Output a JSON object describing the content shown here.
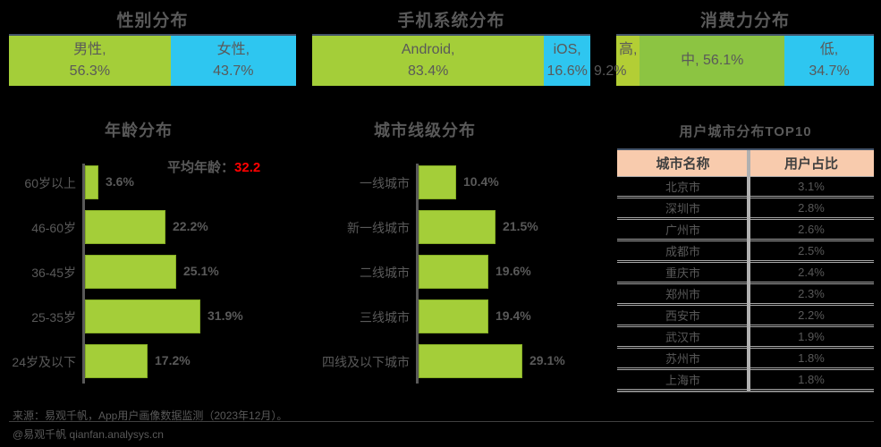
{
  "colors": {
    "green": "#A4CE39",
    "green_high": "#B3CE35",
    "green_mid": "#8CC442",
    "cyan": "#2EC6F0",
    "text_gray": "#595959",
    "red": "#FF0000",
    "table_header_bg": "#F8CBAD",
    "table_border": "#A6A6A6",
    "accent_line": "#44546A"
  },
  "top_charts": [
    {
      "title": "性别分布",
      "segments": [
        {
          "name": "男性,",
          "value": "56.3%",
          "pct": 56.3,
          "color": "green"
        },
        {
          "name": "女性,",
          "value": "43.7%",
          "pct": 43.7,
          "color": "cyan"
        }
      ]
    },
    {
      "title": "手机系统分布",
      "segments": [
        {
          "name": "Android,",
          "value": "83.4%",
          "pct": 83.4,
          "color": "green"
        },
        {
          "name": "iOS,",
          "value": "16.6%",
          "pct": 16.6,
          "color": "cyan"
        }
      ]
    },
    {
      "title": "消费力分布",
      "segments": [
        {
          "name": "高,",
          "value": "9.2%",
          "pct": 9.2,
          "color": "green_high",
          "value_overflow": true
        },
        {
          "name": "中, 56.1%",
          "value": "",
          "pct": 56.1,
          "color": "green_mid",
          "inline": true
        },
        {
          "name": "低,",
          "value": "34.7%",
          "pct": 34.7,
          "color": "cyan"
        }
      ]
    }
  ],
  "age_chart": {
    "title": "年龄分布",
    "annotation_label": "平均年龄：",
    "annotation_value": "32.2",
    "bars": [
      {
        "label": "60岁以上",
        "value": "3.6%",
        "pct": 3.6
      },
      {
        "label": "46-60岁",
        "value": "22.2%",
        "pct": 22.2
      },
      {
        "label": "36-45岁",
        "value": "25.1%",
        "pct": 25.1
      },
      {
        "label": "25-35岁",
        "value": "31.9%",
        "pct": 31.9
      },
      {
        "label": "24岁及以下",
        "value": "17.2%",
        "pct": 17.2
      }
    ]
  },
  "city_chart": {
    "title": "城市线级分布",
    "bars": [
      {
        "label": "一线城市",
        "value": "10.4%",
        "pct": 10.4
      },
      {
        "label": "新一线城市",
        "value": "21.5%",
        "pct": 21.5
      },
      {
        "label": "二线城市",
        "value": "19.6%",
        "pct": 19.6
      },
      {
        "label": "三线城市",
        "value": "19.4%",
        "pct": 19.4
      },
      {
        "label": "四线及以下城市",
        "value": "29.1%",
        "pct": 29.1
      }
    ]
  },
  "city_table": {
    "title": "用户城市分布TOP10",
    "columns": [
      "城市名称",
      "用户占比"
    ],
    "rows": [
      [
        "北京市",
        "3.1%"
      ],
      [
        "深圳市",
        "2.8%"
      ],
      [
        "广州市",
        "2.6%"
      ],
      [
        "成都市",
        "2.5%"
      ],
      [
        "重庆市",
        "2.4%"
      ],
      [
        "郑州市",
        "2.3%"
      ],
      [
        "西安市",
        "2.2%"
      ],
      [
        "武汉市",
        "1.9%"
      ],
      [
        "苏州市",
        "1.8%"
      ],
      [
        "上海市",
        "1.8%"
      ]
    ]
  },
  "footer": {
    "source_line": "来源：易观千帆，App用户画像数据监测（2023年12月）。",
    "watermark": "@易观千帆 qianfan.analysys.cn"
  },
  "chart_data": [
    {
      "type": "bar",
      "variant": "stacked-horizontal",
      "title": "性别分布",
      "categories": [
        "男性",
        "女性"
      ],
      "values": [
        56.3,
        43.7
      ],
      "unit": "%",
      "colors": [
        "#A4CE39",
        "#2EC6F0"
      ]
    },
    {
      "type": "bar",
      "variant": "stacked-horizontal",
      "title": "手机系统分布",
      "categories": [
        "Android",
        "iOS"
      ],
      "values": [
        83.4,
        16.6
      ],
      "unit": "%",
      "colors": [
        "#A4CE39",
        "#2EC6F0"
      ]
    },
    {
      "type": "bar",
      "variant": "stacked-horizontal",
      "title": "消费力分布",
      "categories": [
        "高",
        "中",
        "低"
      ],
      "values": [
        9.2,
        56.1,
        34.7
      ],
      "unit": "%",
      "colors": [
        "#B3CE35",
        "#8CC442",
        "#2EC6F0"
      ]
    },
    {
      "type": "bar",
      "variant": "horizontal",
      "title": "年龄分布",
      "categories": [
        "60岁以上",
        "46-60岁",
        "36-45岁",
        "25-35岁",
        "24岁及以下"
      ],
      "values": [
        3.6,
        22.2,
        25.1,
        31.9,
        17.2
      ],
      "unit": "%",
      "annotation": "平均年龄：32.2",
      "xlim": [
        0,
        35
      ],
      "grid": false
    },
    {
      "type": "bar",
      "variant": "horizontal",
      "title": "城市线级分布",
      "categories": [
        "一线城市",
        "新一线城市",
        "二线城市",
        "三线城市",
        "四线及以下城市"
      ],
      "values": [
        10.4,
        21.5,
        19.6,
        19.4,
        29.1
      ],
      "unit": "%",
      "xlim": [
        0,
        32
      ],
      "grid": false
    },
    {
      "type": "table",
      "title": "用户城市分布TOP10",
      "columns": [
        "城市名称",
        "用户占比"
      ],
      "rows": [
        [
          "北京市",
          "3.1%"
        ],
        [
          "深圳市",
          "2.8%"
        ],
        [
          "广州市",
          "2.6%"
        ],
        [
          "成都市",
          "2.5%"
        ],
        [
          "重庆市",
          "2.4%"
        ],
        [
          "郑州市",
          "2.3%"
        ],
        [
          "西安市",
          "2.2%"
        ],
        [
          "武汉市",
          "1.9%"
        ],
        [
          "苏州市",
          "1.8%"
        ],
        [
          "上海市",
          "1.8%"
        ]
      ]
    }
  ]
}
